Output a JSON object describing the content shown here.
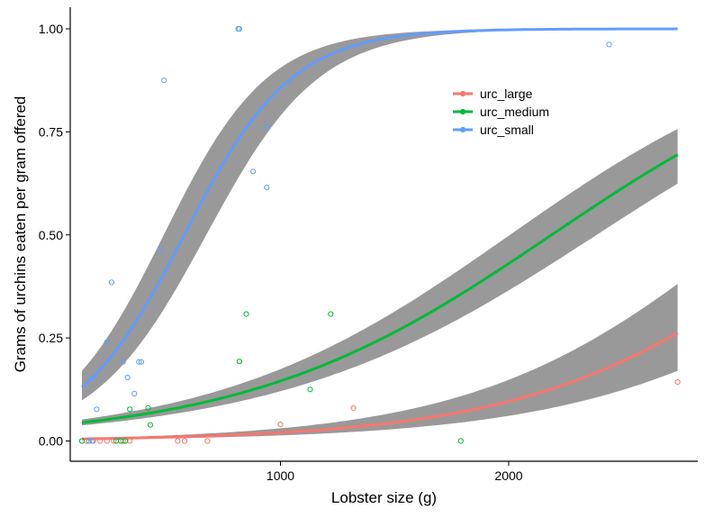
{
  "chart_data": {
    "type": "scatter",
    "title": "",
    "xlabel": "Lobster size (g)",
    "ylabel": "Grams of urchins eaten per gram offered",
    "xlim": [
      0,
      2850
    ],
    "ylim": [
      -0.05,
      1.05
    ],
    "x_ticks": [
      1000,
      2000
    ],
    "y_ticks": [
      0,
      0.25,
      0.5,
      0.75,
      1
    ],
    "x_tick_labels": [
      "1000",
      "2000"
    ],
    "y_tick_labels": [
      "0.00",
      "0.25",
      "0.50",
      "0.75",
      "1.00"
    ],
    "grid": false,
    "legend_position": "top-right",
    "series": [
      {
        "name": "urc_large",
        "color": "#F8766D",
        "points": [
          [
            130,
            0
          ],
          [
            150,
            0
          ],
          [
            180,
            0
          ],
          [
            210,
            0
          ],
          [
            240,
            0
          ],
          [
            270,
            0
          ],
          [
            300,
            0
          ],
          [
            310,
            0
          ],
          [
            320,
            0
          ],
          [
            340,
            0
          ],
          [
            550,
            0
          ],
          [
            580,
            0
          ],
          [
            680,
            0
          ],
          [
            1000,
            0.04
          ],
          [
            1320,
            0.08
          ],
          [
            2740,
            0.143
          ]
        ],
        "fit": {
          "x_start": 130,
          "x_end": 2740,
          "intercept": -5.5,
          "slope": 0.00163,
          "se": [
            0.18,
            0.28
          ]
        }
      },
      {
        "name": "urc_medium",
        "color": "#00BA38",
        "points": [
          [
            130,
            0
          ],
          [
            160,
            0
          ],
          [
            280,
            0
          ],
          [
            300,
            0
          ],
          [
            320,
            0
          ],
          [
            340,
            0.077
          ],
          [
            420,
            0.08
          ],
          [
            430,
            0.039
          ],
          [
            820,
            0.193
          ],
          [
            850,
            0.308
          ],
          [
            1130,
            0.125
          ],
          [
            1220,
            0.308
          ],
          [
            1790,
            0
          ]
        ],
        "fit": {
          "x_start": 130,
          "x_end": 2740,
          "intercept": -3.26,
          "slope": 0.00149,
          "se": [
            0.085,
            0.16
          ]
        }
      },
      {
        "name": "urc_small",
        "color": "#619CFF",
        "points": [
          [
            160,
            0
          ],
          [
            175,
            0
          ],
          [
            195,
            0.077
          ],
          [
            180,
            0.154
          ],
          [
            240,
            0.24
          ],
          [
            260,
            0.385
          ],
          [
            310,
            0.192
          ],
          [
            330,
            0.154
          ],
          [
            360,
            0.115
          ],
          [
            380,
            0.192
          ],
          [
            390,
            0.192
          ],
          [
            475,
            0.462
          ],
          [
            490,
            0.875
          ],
          [
            815,
            1
          ],
          [
            820,
            1
          ],
          [
            880,
            0.654
          ],
          [
            940,
            0.615
          ],
          [
            940,
            0.762
          ],
          [
            2440,
            0.962
          ]
        ],
        "fit": {
          "x_start": 130,
          "x_end": 2740,
          "intercept": -2.45,
          "slope": 0.00424,
          "se": [
            0.16,
            0.4
          ]
        }
      }
    ]
  }
}
